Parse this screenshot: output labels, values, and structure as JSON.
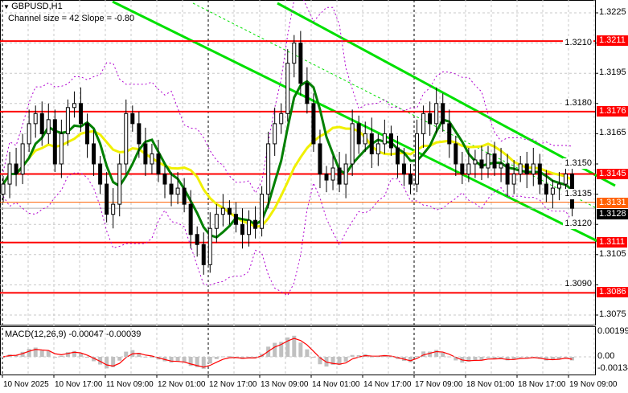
{
  "header": {
    "symbol": "GBPUSD,H1",
    "channel": "Channel size = 42 Slope = -0.80"
  },
  "macd": {
    "label": "MACD(12,26,9) -0.00047 -0.00039",
    "ticks": [
      "0.00199",
      "0.00",
      "-0.00134"
    ]
  },
  "colors": {
    "level": "#ff0000",
    "channel": "#00e000",
    "ma_fast": "#008000",
    "ma_slow": "#f0f000",
    "macd_hist": "#c0c0c0",
    "macd_signal": "#ff0000",
    "bands": "#b000d0"
  },
  "chart_data": {
    "type": "candlestick",
    "title": "GBPUSD,H1",
    "ylim": [
      1.3065,
      1.3232
    ],
    "price_ticks": [
      "1.3225",
      "1.3210",
      "1.3195",
      "1.3180",
      "1.3165",
      "1.3150",
      "1.3135",
      "1.3120",
      "1.3105",
      "1.3090",
      "1.3075"
    ],
    "levels": [
      {
        "label": "1.3211",
        "v": 1.3211
      },
      {
        "label": "1.3176",
        "v": 1.3176
      },
      {
        "label": "1.3145",
        "v": 1.3145
      },
      {
        "label": "1.3111",
        "v": 1.3111
      },
      {
        "label": "1.3086",
        "v": 1.3086
      }
    ],
    "ask": {
      "label": "1.3131",
      "v": 1.3131
    },
    "bid": {
      "label": "1.3128",
      "v": 1.3128
    },
    "time_labels": [
      "10 Nov 2025",
      "10 Nov 17:00",
      "11 Nov 09:00",
      "12 Nov 01:00",
      "12 Nov 17:00",
      "13 Nov 09:00",
      "14 Nov 01:00",
      "14 Nov 17:00",
      "17 Nov 09:00",
      "18 Nov 01:00",
      "18 Nov 17:00",
      "19 Nov 09:00"
    ],
    "closes": [
      1.314,
      1.315,
      1.3145,
      1.316,
      1.317,
      1.3175,
      1.3165,
      1.3172,
      1.315,
      1.3165,
      1.3178,
      1.318,
      1.317,
      1.316,
      1.315,
      1.314,
      1.3125,
      1.313,
      1.315,
      1.3175,
      1.317,
      1.316,
      1.315,
      1.3155,
      1.3145,
      1.314,
      1.3135,
      1.3138,
      1.313,
      1.3115,
      1.311,
      1.31,
      1.3118,
      1.3125,
      1.3128,
      1.3125,
      1.312,
      1.3115,
      1.3122,
      1.3118,
      1.3135,
      1.316,
      1.317,
      1.3175,
      1.32,
      1.321,
      1.319,
      1.318,
      1.316,
      1.3145,
      1.3142,
      1.3148,
      1.314,
      1.315,
      1.317,
      1.316,
      1.3165,
      1.3155,
      1.316,
      1.3165,
      1.3158,
      1.315,
      1.3145,
      1.314,
      1.3165,
      1.3175,
      1.317,
      1.318,
      1.317,
      1.316,
      1.315,
      1.3145,
      1.315,
      1.3152,
      1.3148,
      1.3155,
      1.3148,
      1.315,
      1.314,
      1.3145,
      1.315,
      1.3145,
      1.315,
      1.314,
      1.3135,
      1.3138,
      1.314,
      1.3145,
      1.3128
    ]
  }
}
